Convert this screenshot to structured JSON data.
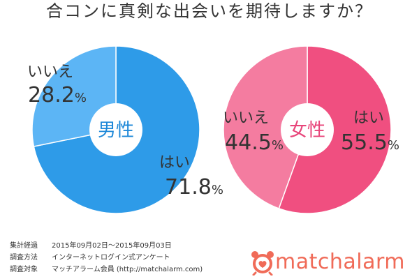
{
  "title": "合コンに真剣な出会いを期待しますか？",
  "chart_data": [
    {
      "type": "pie",
      "center_label": "男性",
      "slices": [
        {
          "label": "はい",
          "value": 71.8,
          "display": "71.8",
          "unit": "%",
          "color": "#2e9be8"
        },
        {
          "label": "いいえ",
          "value": 28.2,
          "display": "28.2",
          "unit": "%",
          "color": "#5cb5f5"
        }
      ]
    },
    {
      "type": "pie",
      "center_label": "女性",
      "slices": [
        {
          "label": "はい",
          "value": 55.5,
          "display": "55.5",
          "unit": "%",
          "color": "#f04f80"
        },
        {
          "label": "いいえ",
          "value": 44.5,
          "display": "44.5",
          "unit": "%",
          "color": "#f47ca0"
        }
      ]
    }
  ],
  "footer": [
    {
      "key": "集計経過",
      "value": "2015年09月02日～2015年09月03日"
    },
    {
      "key": "調査方法",
      "value": "インターネットログイン式アンケート"
    },
    {
      "key": "調査対象",
      "value": "マッチアラーム会員 (http://matchalarm.com)"
    }
  ],
  "logo": {
    "text": "matchalarm",
    "color": "#f06b58"
  }
}
